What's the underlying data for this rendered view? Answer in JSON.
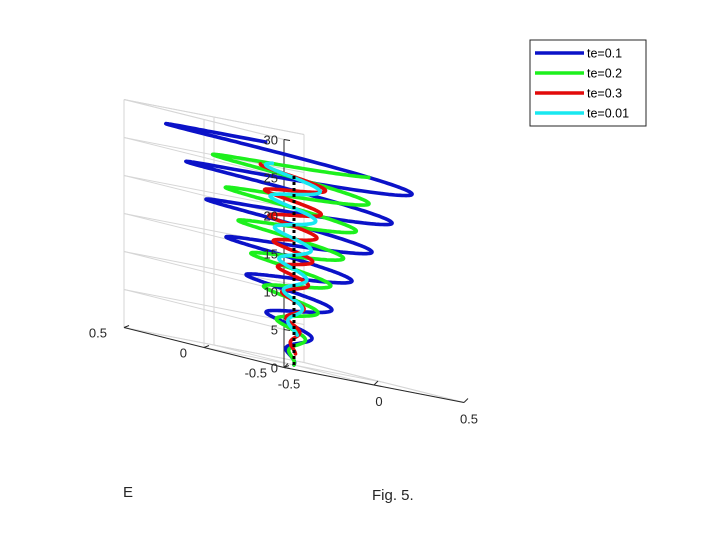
{
  "caption": "Fig. 5.",
  "chart_data": {
    "type": "line",
    "dimensions": 3,
    "title": "",
    "xlabel": "",
    "ylabel": "E",
    "zlabel": "",
    "xlim": [
      -0.5,
      0.5
    ],
    "ylim": [
      -0.5,
      0.5
    ],
    "zlim": [
      0,
      30
    ],
    "x_ticks": [
      "-0.5",
      "0",
      "0.5"
    ],
    "y_ticks": [
      "-0.5",
      "0",
      "0.5"
    ],
    "z_ticks": [
      "0",
      "5",
      "10",
      "15",
      "20",
      "25",
      "30"
    ],
    "grid": true,
    "legend_position": "top-right",
    "series": [
      {
        "name": "te=0.1",
        "color": "#0b12c8",
        "shape": "conical helix",
        "z_range": [
          0,
          29
        ],
        "radius_at_top": 0.55,
        "turns": 6.6,
        "turns_text": "about 6.6 turns"
      },
      {
        "name": "te=0.2",
        "color": "#1df01d",
        "shape": "conical helix",
        "z_range": [
          0,
          27
        ],
        "radius_at_top": 0.36,
        "turns": 6.8,
        "turns_text": "about 6.8 turns"
      },
      {
        "name": "te=0.3",
        "color": "#e20a0a",
        "shape": "conical helix",
        "z_range": [
          1.5,
          25.5
        ],
        "radius_at_top": 0.14,
        "turns": 7.4,
        "turns_text": "about 7.4 turns"
      },
      {
        "name": "te=0.01",
        "color": "#18e8f0",
        "shape": "conical helix",
        "z_range": [
          4,
          26
        ],
        "radius_at_top": 0.12,
        "turns": 5.5,
        "turns_text": "about 5.5 turns"
      }
    ],
    "axis_line": {
      "style": "dotted",
      "color": "#000000",
      "z_range": [
        0,
        25
      ]
    }
  }
}
